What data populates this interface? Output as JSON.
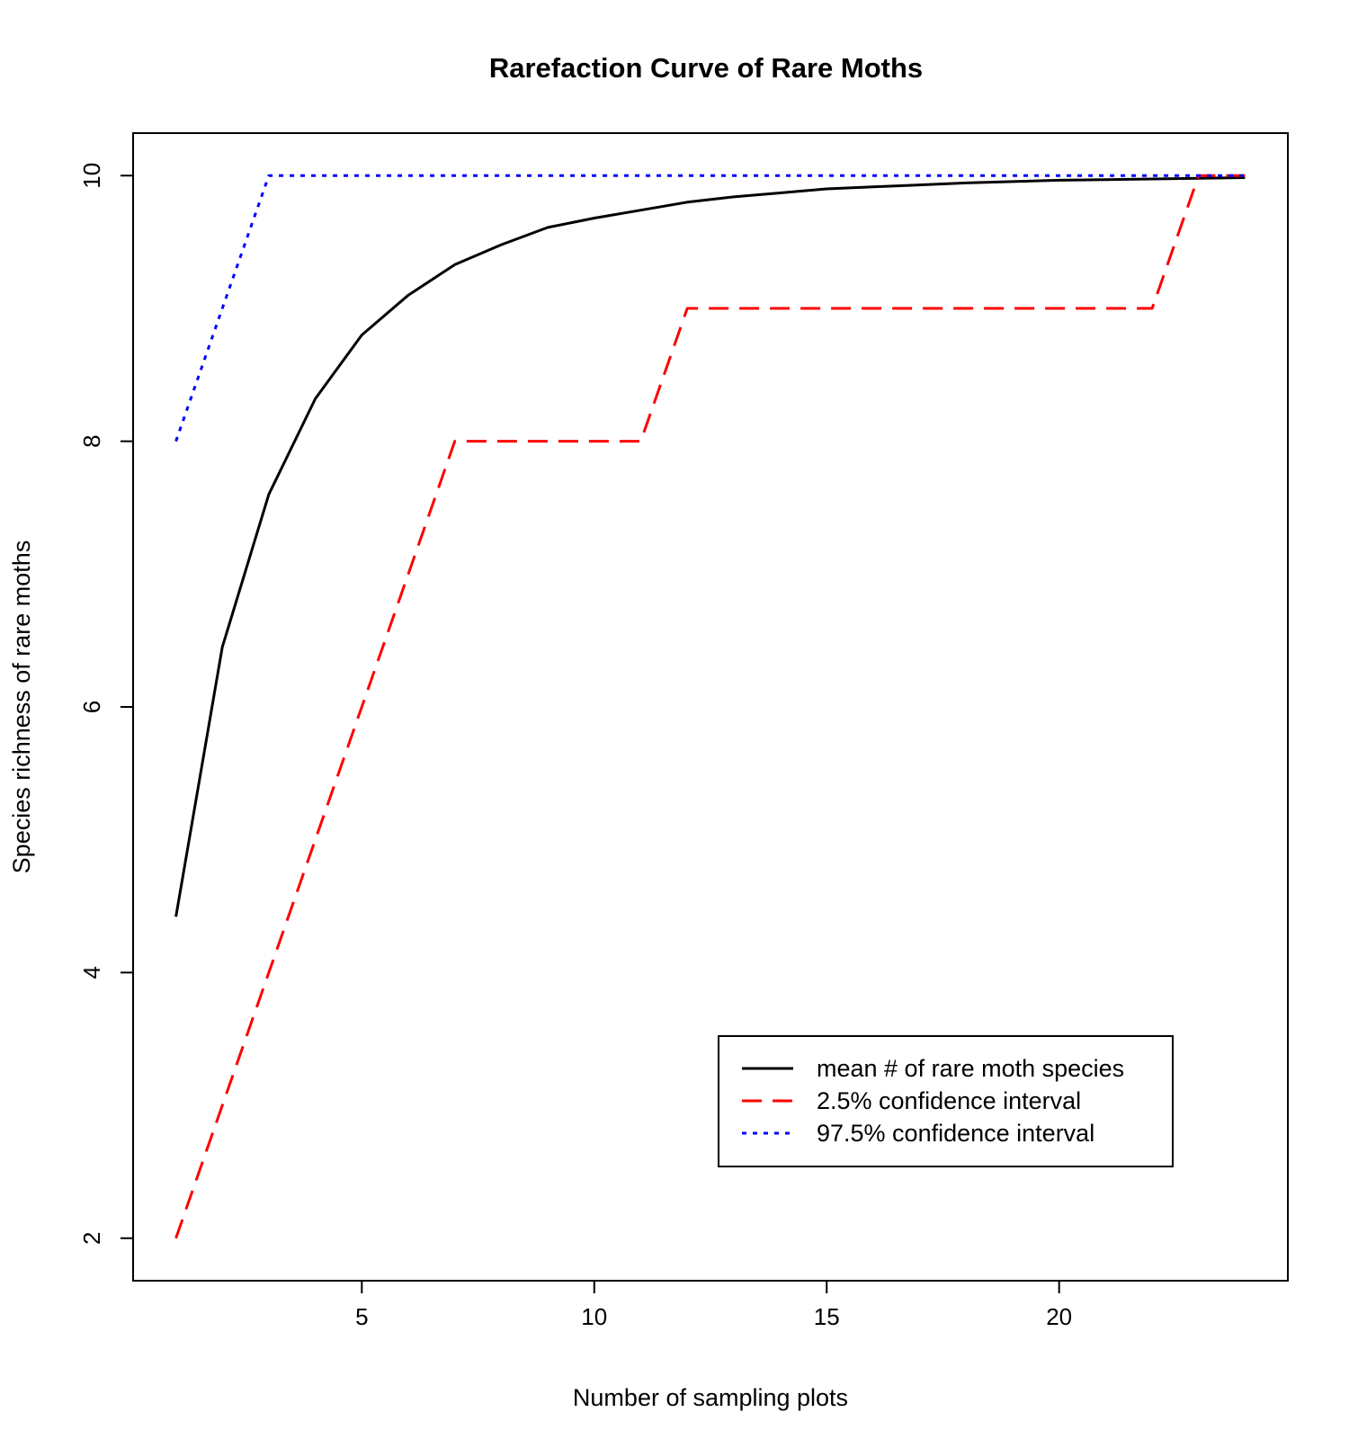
{
  "chart_data": {
    "type": "line",
    "title": "Rarefaction Curve of Rare Moths",
    "xlabel": "Number of sampling plots",
    "ylabel": "Species richness of rare moths",
    "xlim": [
      0.08,
      24.92
    ],
    "ylim": [
      1.68,
      10.32
    ],
    "xticks": [
      5,
      10,
      15,
      20
    ],
    "yticks": [
      2,
      4,
      6,
      8,
      10
    ],
    "grid": false,
    "legend_position": "bottom-right",
    "x": [
      1,
      2,
      3,
      4,
      5,
      6,
      7,
      8,
      9,
      10,
      11,
      12,
      13,
      14,
      15,
      16,
      17,
      18,
      19,
      20,
      21,
      22,
      23,
      24
    ],
    "series": [
      {
        "name": "mean # of rare moth species",
        "color": "#000000",
        "dash": "solid",
        "values": [
          4.42,
          6.45,
          7.6,
          8.32,
          8.8,
          9.1,
          9.33,
          9.48,
          9.61,
          9.68,
          9.74,
          9.8,
          9.84,
          9.87,
          9.9,
          9.915,
          9.93,
          9.945,
          9.955,
          9.965,
          9.97,
          9.975,
          9.98,
          9.985
        ]
      },
      {
        "name": "2.5% confidence interval",
        "color": "#ff0000",
        "dash": "dashed",
        "values": [
          2,
          3,
          4,
          5,
          6,
          7,
          8,
          8,
          8,
          8,
          8,
          9,
          9,
          9,
          9,
          9,
          9,
          9,
          9,
          9,
          9,
          9,
          10,
          10
        ]
      },
      {
        "name": "97.5% confidence interval",
        "color": "#0000ff",
        "dash": "dotted",
        "values": [
          8,
          9,
          10,
          10,
          10,
          10,
          10,
          10,
          10,
          10,
          10,
          10,
          10,
          10,
          10,
          10,
          10,
          10,
          10,
          10,
          10,
          10,
          10,
          10
        ]
      }
    ]
  }
}
